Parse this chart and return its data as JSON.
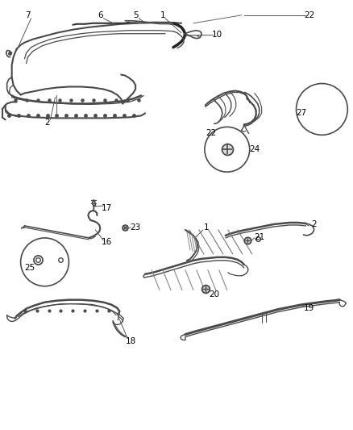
{
  "bg_color": "#ffffff",
  "line_color": "#4a4a4a",
  "fig_width": 4.38,
  "fig_height": 5.33,
  "dpi": 100
}
